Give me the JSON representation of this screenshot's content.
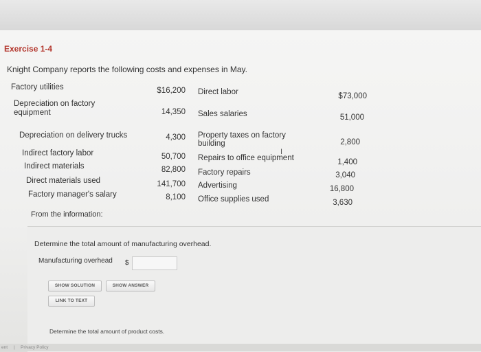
{
  "exercise": {
    "title": "Exercise 1-4",
    "intro": "Knight Company reports the following costs and expenses in May."
  },
  "left_items": [
    {
      "label": "Factory utilities",
      "amount": "$16,200"
    },
    {
      "label": "Depreciation on factory",
      "label2": "equipment",
      "amount": "14,350"
    },
    {
      "label": "Depreciation on delivery trucks",
      "amount": "4,300"
    },
    {
      "label": "Indirect factory labor",
      "amount": "50,700"
    },
    {
      "label": "Indirect materials",
      "amount": "82,800"
    },
    {
      "label": "Direct materials used",
      "amount": "141,700"
    },
    {
      "label": "Factory manager's salary",
      "amount": "8,100"
    }
  ],
  "right_items": [
    {
      "label": "Direct labor",
      "amount": "$73,000"
    },
    {
      "label": "Sales salaries",
      "amount": "51,000"
    },
    {
      "label": "Property taxes on factory",
      "label2": "building",
      "amount": "2,800"
    },
    {
      "label": "Repairs to office equipment",
      "amount": "1,400"
    },
    {
      "label": "Factory repairs",
      "amount": "3,040"
    },
    {
      "label": "Advertising",
      "amount": "16,800"
    },
    {
      "label": "Office supplies used",
      "amount": "3,630"
    }
  ],
  "from_info": "From the information:",
  "question1": {
    "prompt": "Determine the total amount of manufacturing overhead.",
    "field_label": "Manufacturing overhead",
    "currency": "$",
    "value": ""
  },
  "buttons": {
    "show_solution": "SHOW SOLUTION",
    "show_answer": "SHOW ANSWER",
    "link_to_text": "LINK TO TEXT"
  },
  "question2": {
    "prompt": "Determine the total amount of product costs."
  },
  "footer": {
    "left": "ent",
    "privacy": "Privacy Policy"
  }
}
